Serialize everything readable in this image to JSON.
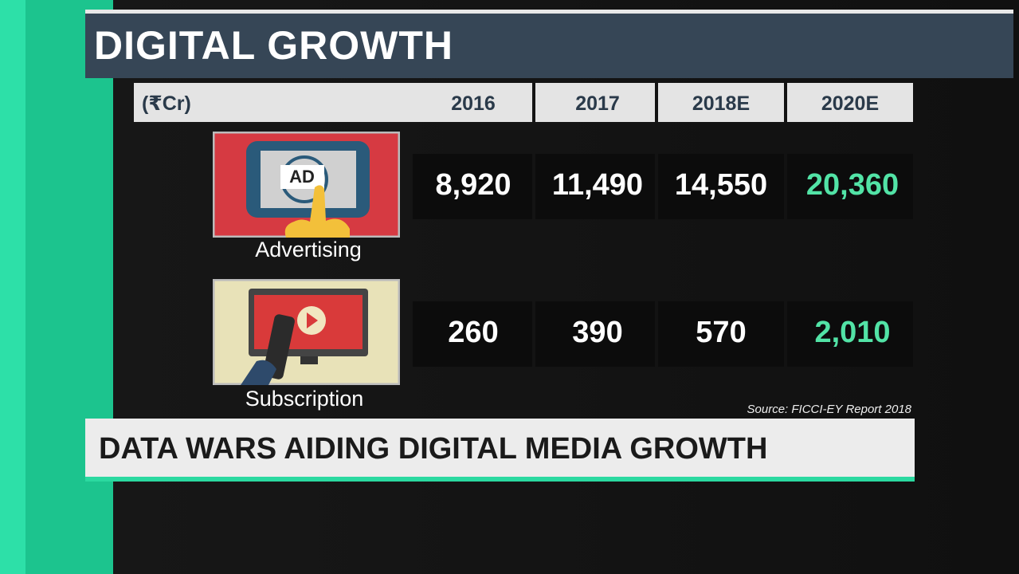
{
  "header": {
    "title": "DIGITAL GROWTH"
  },
  "table": {
    "columns": [
      "(₹Cr)",
      "2016",
      "2017",
      "2018E",
      "2020E"
    ],
    "rows": [
      {
        "label": "Advertising",
        "icon_text": "AD",
        "values": [
          "8,920",
          "11,490",
          "14,550",
          "20,360"
        ]
      },
      {
        "label": "Subscription",
        "values": [
          "260",
          "390",
          "570",
          "2,010"
        ]
      }
    ]
  },
  "source": "Source: FICCI-EY Report 2018",
  "ticker": "DATA WARS AIDING DIGITAL MEDIA GROWTH"
}
